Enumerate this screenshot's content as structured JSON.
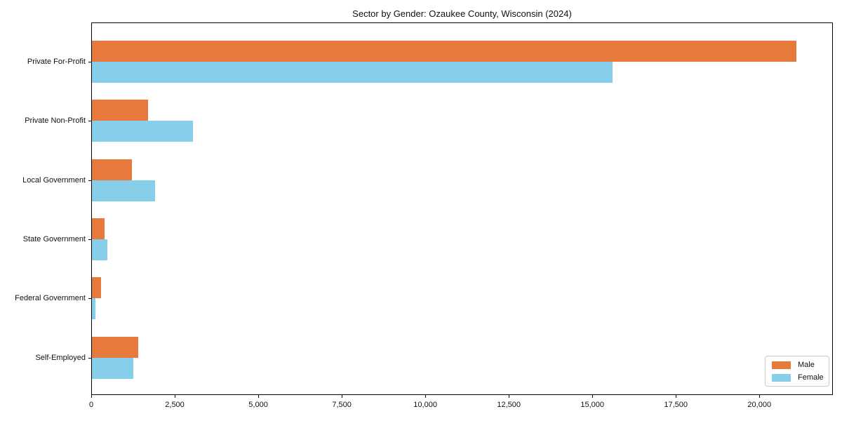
{
  "title": "Sector by Gender: Ozaukee County, Wisconsin (2024)",
  "legend": {
    "items": [
      {
        "label": "Male",
        "color": "#e8793d"
      },
      {
        "label": "Female",
        "color": "#87ceeb"
      }
    ]
  },
  "chart_data": {
    "type": "bar",
    "orientation": "horizontal",
    "title": "Sector by Gender: Ozaukee County, Wisconsin (2024)",
    "categories": [
      "Private For-Profit",
      "Private Non-Profit",
      "Local Government",
      "State Government",
      "Federal Government",
      "Self-Employed"
    ],
    "series": [
      {
        "name": "Male",
        "color": "#e8793d",
        "values": [
          21100,
          1700,
          1210,
          400,
          290,
          1400
        ]
      },
      {
        "name": "Female",
        "color": "#87ceeb",
        "values": [
          15600,
          3040,
          1910,
          490,
          120,
          1270
        ]
      }
    ],
    "xlabel": "",
    "ylabel": "",
    "xlim": [
      0,
      22200
    ],
    "xticks": [
      0,
      2500,
      5000,
      7500,
      10000,
      12500,
      15000,
      17500,
      20000
    ],
    "xtick_labels": [
      "0",
      "2,500",
      "5,000",
      "7,500",
      "10,000",
      "12,500",
      "15,000",
      "17,500",
      "20,000"
    ],
    "grid": false,
    "legend_position": "lower right",
    "background": "#ffffff"
  }
}
